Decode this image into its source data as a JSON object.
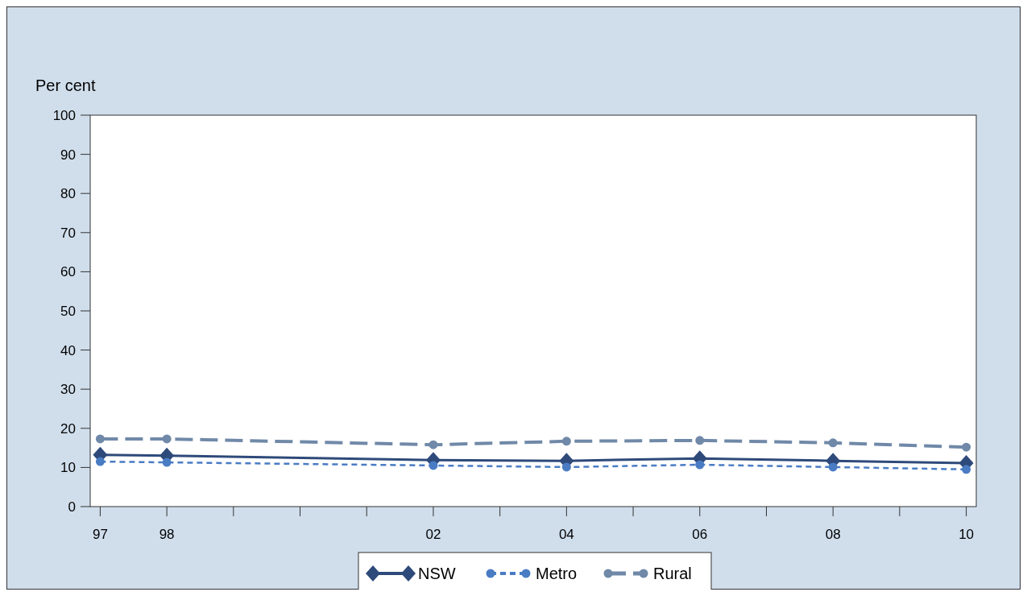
{
  "chart_data": {
    "type": "line",
    "ylabel": "Per cent",
    "x": [
      1997,
      1998,
      2002,
      2004,
      2006,
      2008,
      2010
    ],
    "series": [
      {
        "name": "NSW",
        "color": "#2e4a7a",
        "marker": "diamond",
        "line_style": "solid",
        "values": [
          13.2,
          13.0,
          11.9,
          11.7,
          12.3,
          11.7,
          11.1
        ]
      },
      {
        "name": "Metro",
        "color": "#4a7cc4",
        "marker": "circle",
        "line_style": "dashed",
        "values": [
          11.5,
          11.3,
          10.5,
          10.1,
          10.7,
          10.1,
          9.5
        ]
      },
      {
        "name": "Rural",
        "color": "#7089a8",
        "marker": "circle",
        "line_style": "longdash",
        "values": [
          17.3,
          17.3,
          15.8,
          16.7,
          16.9,
          16.3,
          15.2
        ]
      }
    ],
    "xlim": [
      1996.85,
      2010.15
    ],
    "xticks": [
      {
        "value": 1997,
        "label": "97"
      },
      {
        "value": 1998,
        "label": "98"
      },
      {
        "value": 1999,
        "label": null
      },
      {
        "value": 2000,
        "label": null
      },
      {
        "value": 2001,
        "label": null
      },
      {
        "value": 2002,
        "label": "02"
      },
      {
        "value": 2003,
        "label": null
      },
      {
        "value": 2004,
        "label": "04"
      },
      {
        "value": 2005,
        "label": null
      },
      {
        "value": 2006,
        "label": "06"
      },
      {
        "value": 2007,
        "label": null
      },
      {
        "value": 2008,
        "label": "08"
      },
      {
        "value": 2009,
        "label": null
      },
      {
        "value": 2010,
        "label": "10"
      }
    ],
    "ylim": [
      0,
      100
    ],
    "yticks": [
      0,
      10,
      20,
      30,
      40,
      50,
      60,
      70,
      80,
      90,
      100
    ],
    "grid": false,
    "legend": "bottom"
  }
}
